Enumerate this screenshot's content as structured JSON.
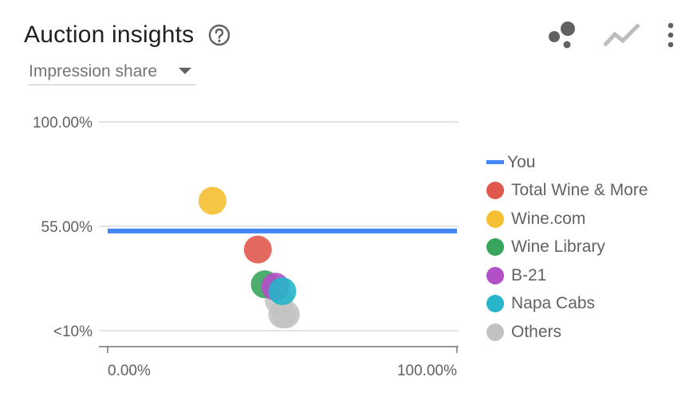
{
  "header": {
    "title": "Auction insights",
    "help_icon": "help-circle-icon"
  },
  "toolbar": {
    "icons": [
      "scatter-chart-icon",
      "line-chart-icon",
      "more-vert-icon"
    ]
  },
  "metric_select": {
    "selected": "Impression share"
  },
  "colors": {
    "you": "#4285f4",
    "gridline": "#dadce0",
    "axis": "#757575"
  },
  "chart_data": {
    "type": "scatter",
    "title": "",
    "xlabel": "",
    "ylabel": "",
    "xlim": [
      0,
      100
    ],
    "ylim": [
      10,
      100
    ],
    "x_tick_labels": [
      "0.00%",
      "100.00%"
    ],
    "y_tick_labels": [
      "100.00%",
      "55.00%",
      "<10%"
    ],
    "legend_position": "right",
    "reference_line": {
      "name": "You",
      "y": 53,
      "color": "#4285f4"
    },
    "series": [
      {
        "name": "Total Wine & More",
        "color": "#e0584b",
        "points": [
          {
            "x": 43,
            "y": 45
          }
        ]
      },
      {
        "name": "Wine.com",
        "color": "#f5bf32",
        "points": [
          {
            "x": 30,
            "y": 66
          }
        ]
      },
      {
        "name": "Wine Library",
        "color": "#38a55d",
        "points": [
          {
            "x": 45,
            "y": 30
          }
        ]
      },
      {
        "name": "B-21",
        "color": "#b34fc7",
        "points": [
          {
            "x": 48,
            "y": 29
          }
        ]
      },
      {
        "name": "Napa Cabs",
        "color": "#26b5c9",
        "points": [
          {
            "x": 50,
            "y": 27
          }
        ]
      },
      {
        "name": "Others",
        "color": "#c2c2c2",
        "points": [
          {
            "x": 49,
            "y": 23
          },
          {
            "x": 50,
            "y": 17
          },
          {
            "x": 51,
            "y": 17
          }
        ]
      }
    ]
  }
}
